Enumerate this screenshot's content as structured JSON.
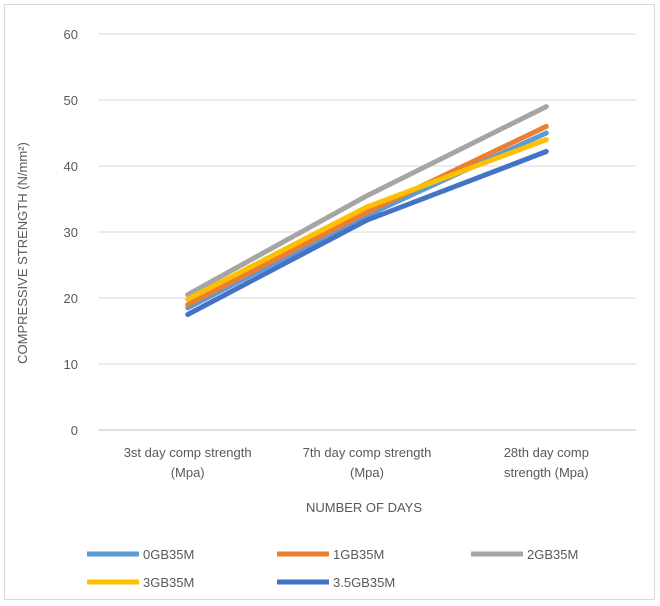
{
  "chart_data": {
    "type": "line",
    "title": "",
    "xlabel": "NUMBER OF DAYS",
    "ylabel": "COMPRESSIVE STRENGTH (N/mm²)",
    "ylim": [
      0,
      60
    ],
    "yticks": [
      "0",
      "10",
      "20",
      "30",
      "40",
      "50",
      "60"
    ],
    "categories": [
      [
        "3st day comp strength",
        "(Mpa)"
      ],
      [
        "7th day comp strength",
        "(Mpa)"
      ],
      [
        "28th day comp",
        "strength (Mpa)"
      ]
    ],
    "grid": true,
    "legend_position": "bottom",
    "series": [
      {
        "name": "0GB35M",
        "color": "#5b9bd5",
        "values": [
          18.5,
          32.5,
          45.0
        ]
      },
      {
        "name": "1GB35M",
        "color": "#ed7d31",
        "values": [
          19.0,
          33.0,
          46.0
        ]
      },
      {
        "name": "2GB35M",
        "color": "#a5a5a5",
        "values": [
          20.5,
          35.5,
          49.0
        ]
      },
      {
        "name": "3GB35M",
        "color": "#ffc000",
        "values": [
          19.8,
          33.8,
          44.0
        ]
      },
      {
        "name": "3.5GB35M",
        "color": "#4472c4",
        "values": [
          17.5,
          31.8,
          42.2
        ]
      }
    ]
  }
}
